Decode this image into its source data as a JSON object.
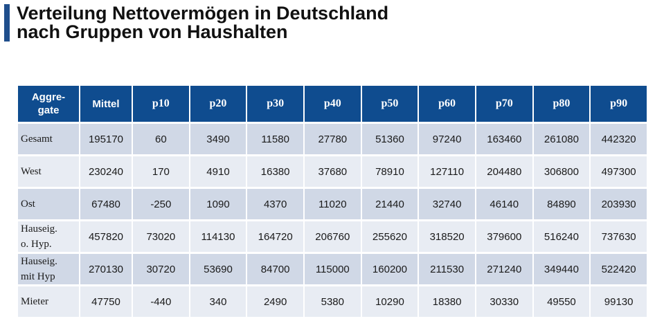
{
  "title": [
    "Verteilung Nettovermögen in Deutschland",
    "nach Gruppen von Haushalten"
  ],
  "colors": {
    "header_bg": "#0f4c8f",
    "row_dark": "#d0d8e6",
    "row_light": "#e8ecf3",
    "accent_bar": "#1f4e8c"
  },
  "chart_data": {
    "type": "table",
    "title": "Verteilung Nettovermögen in Deutschland nach Gruppen von Haushalten",
    "header_label": [
      "Aggre-",
      "gate"
    ],
    "columns": [
      "Mittel",
      "p10",
      "p20",
      "p30",
      "p40",
      "p50",
      "p60",
      "p70",
      "p80",
      "p90"
    ],
    "rows": [
      {
        "label": [
          "Gesamt"
        ],
        "values": [
          195170,
          60,
          3490,
          11580,
          27780,
          51360,
          97240,
          163460,
          261080,
          442320
        ]
      },
      {
        "label": [
          "West"
        ],
        "values": [
          230240,
          170,
          4910,
          16380,
          37680,
          78910,
          127110,
          204480,
          306800,
          497300
        ]
      },
      {
        "label": [
          "Ost"
        ],
        "values": [
          67480,
          -250,
          1090,
          4370,
          11020,
          21440,
          32740,
          46140,
          84890,
          203930
        ]
      },
      {
        "label": [
          "Hauseig.",
          "o. Hyp."
        ],
        "values": [
          457820,
          73020,
          114130,
          164720,
          206760,
          255620,
          318520,
          379600,
          516240,
          737630
        ]
      },
      {
        "label": [
          "Hauseig.",
          "mit Hyp"
        ],
        "values": [
          270130,
          30720,
          53690,
          84700,
          115000,
          160200,
          211530,
          271240,
          349440,
          522420
        ]
      },
      {
        "label": [
          "Mieter"
        ],
        "values": [
          47750,
          -440,
          340,
          2490,
          5380,
          10290,
          18380,
          30330,
          49550,
          99130
        ]
      }
    ]
  }
}
